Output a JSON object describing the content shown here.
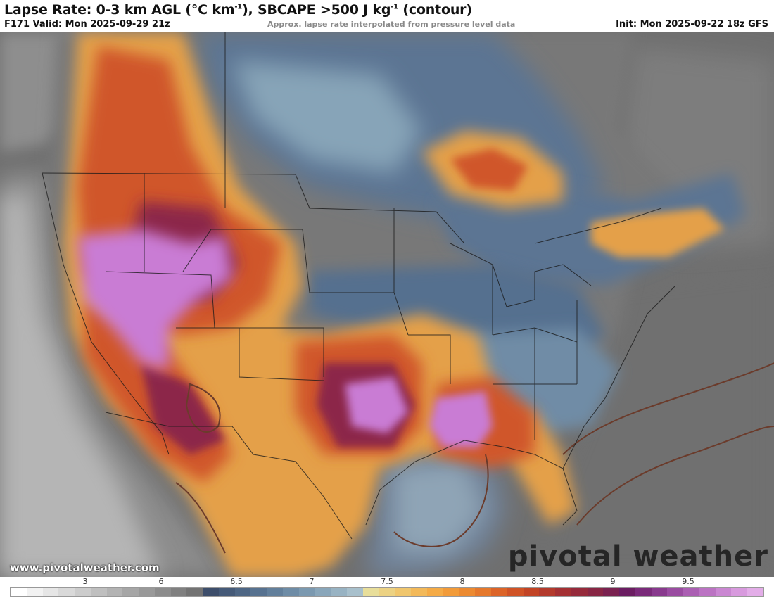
{
  "header": {
    "title_main": "Lapse Rate: 0-3 km AGL (°C km",
    "title_sup1": "-1",
    "title_mid": "), SBCAPE >500 J kg",
    "title_sup2": "-1",
    "title_end": " (contour)",
    "valid": "F171 Valid: Mon 2025-09-29 21z",
    "note": "Approx. lapse rate interpolated from pressure level data",
    "init": "Init: Mon 2025-09-22 18z GFS"
  },
  "footer": {
    "website": "www.pivotalweather.com",
    "brand": "pivotal weather"
  },
  "colorbar": {
    "ticks": [
      "3",
      "6",
      "6.5",
      "7",
      "7.5",
      "8",
      "8.5",
      "9",
      "9.5"
    ],
    "colors": [
      "#ffffff",
      "#f2f2f2",
      "#e6e6e6",
      "#d9d9d9",
      "#cccccc",
      "#bfbfbf",
      "#b3b3b3",
      "#a6a6a6",
      "#999999",
      "#8c8c8c",
      "#808080",
      "#737373",
      "#3d4e6b",
      "#455a78",
      "#4e6684",
      "#577290",
      "#627f9b",
      "#6e8ca6",
      "#7b99b0",
      "#89a6ba",
      "#98b3c3",
      "#a8c0cc",
      "#e8de9a",
      "#ecd283",
      "#f0c66d",
      "#f3b959",
      "#f5ab46",
      "#f29b39",
      "#ec8a31",
      "#e5782c",
      "#dc6428",
      "#d05326",
      "#c24425",
      "#b33a2c",
      "#a43033",
      "#962a3b",
      "#882644",
      "#7a2250",
      "#6b1d62",
      "#7a2a7a",
      "#893a8e",
      "#9a4ca1",
      "#ab5fb3",
      "#bb73c3",
      "#ca87d2",
      "#d89ade",
      "#e3ade8"
    ]
  },
  "map": {
    "colors": {
      "ocean": "#6e6e6e",
      "land_stable": "#7a7a7a",
      "moderate": "#5b7593",
      "mid": "#8aa9bd",
      "warm": "#e4a04a",
      "hot": "#d0562b",
      "very_hot": "#8c2748",
      "extreme": "#c97bd4",
      "cape_contour": "#6b3b2b",
      "borders": "#1a1a1a"
    }
  }
}
